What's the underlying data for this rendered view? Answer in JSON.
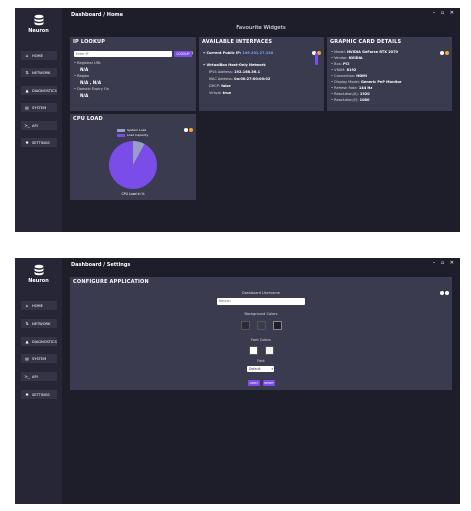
{
  "app": {
    "name": "Neuron",
    "window_controls": "– ▫ ✕"
  },
  "sidebar": {
    "items": [
      {
        "label": "HOME",
        "icon": "home-icon",
        "glyph": "⌂"
      },
      {
        "label": "NETWORK",
        "icon": "network-icon",
        "glyph": "⇅"
      },
      {
        "label": "DIAGNOSTICS",
        "icon": "diagnostics-icon",
        "glyph": "▲"
      },
      {
        "label": "SYSTEM",
        "icon": "system-icon",
        "glyph": "▤"
      },
      {
        "label": "API",
        "icon": "terminal-icon",
        "glyph": ">_"
      },
      {
        "label": "SETTINGS",
        "icon": "gear-icon",
        "glyph": "✹"
      }
    ]
  },
  "dashboard_home": {
    "breadcrumb": "Dashboard /  Home",
    "heading": "Favourite Widgets",
    "ip_lookup": {
      "title": "IP LOOKUP",
      "placeholder": "Enter IP",
      "button": "LOOKUP",
      "registrar_label": "• Registrar URL",
      "registrar_value": "N/A",
      "region_label": "• Region",
      "region_value": "N/A , N/A",
      "domain_expiry_label": "• Domain Expiry On",
      "domain_expiry_value": "N/A"
    },
    "interfaces": {
      "title": "AVAILABLE INTERFACES",
      "public_ip_label": "• Current Public IP:",
      "public_ip_value": "106.201.27.248",
      "adapter_name": "• VirtualBox Host-Only Network",
      "ipv4_label": "IPV4 Address:",
      "ipv4_value": "192.168.56.1",
      "mac_label": "MAC Address:",
      "mac_value": "0a:00:27:00:00:02",
      "dhcp_label": "DHCP:",
      "dhcp_value": "false",
      "virtual_label": "Virtual:",
      "virtual_value": "true"
    },
    "gpu": {
      "title": "GRAPHIC CARD DETAILS",
      "rows": [
        {
          "label": "• Model:",
          "value": "NVIDIA GeForce RTX 2070"
        },
        {
          "label": "• Vendor:",
          "value": "NVIDIA"
        },
        {
          "label": "• Bus:",
          "value": "PCI"
        },
        {
          "label": "• VRAM:",
          "value": "8192"
        },
        {
          "label": "• Connection:",
          "value": "HDMI"
        },
        {
          "label": "• Display Model:",
          "value": "Generic PnP Monitor"
        },
        {
          "label": "• Refresh Rate:",
          "value": "144 Hz"
        },
        {
          "label": "• Resolution(X):",
          "value": "1920"
        },
        {
          "label": "• Resolution(Y):",
          "value": "1080"
        }
      ]
    },
    "cpu_load": {
      "title": "CPU LOAD",
      "legend_system": "System Load",
      "legend_user": "Load Capacity",
      "caption": "CPU Load in %",
      "system_fraction": 0.08,
      "colors": {
        "system": "#9a9cc9",
        "user": "#7b4de8"
      }
    }
  },
  "dashboard_settings": {
    "breadcrumb": "Dashboard /  Settings",
    "panel_title": "CONFIGURE APPLICATION",
    "username_label": "Dashboard Username",
    "username_value": "Neuron",
    "bg_colors_label": "Background Colors",
    "bg_colors": [
      "#2a2a3a",
      "#3a3b4e",
      "#1e1e2b"
    ],
    "font_colors_label": "Font Colors",
    "font_colors": [
      "#ffffff",
      "#f2f2f2"
    ],
    "font_label": "Font",
    "font_value": "Default",
    "apply_button": "APPLY",
    "reset_button": "RESET"
  },
  "colors": {
    "accent": "#7b4de8",
    "background": "#1e1e2b",
    "panel": "#3a3b4e",
    "sidebar": "#262636",
    "warning_dot": "#f4a52c"
  }
}
